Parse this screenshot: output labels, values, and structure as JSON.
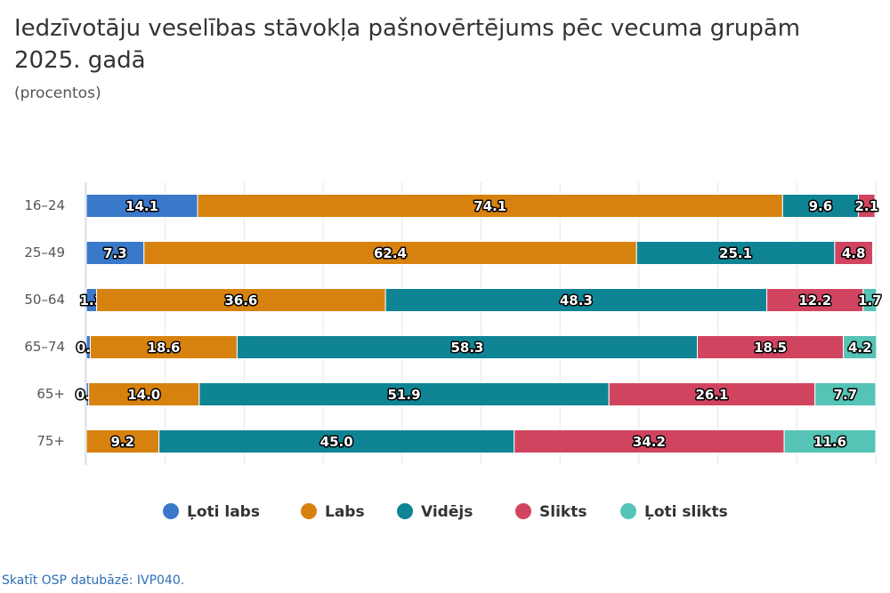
{
  "chart_data": {
    "type": "stacked_barh",
    "title": "Iedzīvotāju veselības stāvokļa pašnovērtējums pēc vecuma grupām 2025. gadā",
    "subtitle": "(procentos)",
    "categories": [
      "16–24",
      "25–49",
      "50–64",
      "65–74",
      "65+",
      "75+"
    ],
    "series": [
      {
        "name": "Ļoti labs",
        "color": "#3a78c9",
        "values": [
          14.1,
          7.3,
          1.3,
          0.5,
          0.3,
          null
        ]
      },
      {
        "name": "Labs",
        "color": "#d7820f",
        "values": [
          74.1,
          62.4,
          36.6,
          18.6,
          14.0,
          9.2
        ],
        "value_labels": [
          "74.1",
          "62.4",
          "36.6",
          "18.6",
          "14.0",
          "9.2"
        ]
      },
      {
        "name": "Vidējs",
        "color": "#0f8494",
        "values": [
          9.6,
          25.1,
          48.3,
          58.3,
          51.9,
          45.0
        ],
        "value_labels": [
          "9.6",
          "25.1",
          "48.3",
          "58.3",
          "51.9",
          "45.0"
        ]
      },
      {
        "name": "Slikts",
        "color": "#d1445f",
        "values": [
          2.1,
          4.8,
          12.2,
          18.5,
          26.1,
          34.2
        ]
      },
      {
        "name": "Ļoti slikts",
        "color": "#55c3b5",
        "values": [
          null,
          null,
          1.7,
          4.2,
          7.7,
          11.6
        ]
      }
    ],
    "xlim": [
      0,
      100
    ],
    "xticks": [
      0,
      10,
      20,
      30,
      40,
      50,
      60,
      70,
      80,
      90,
      100
    ],
    "grid": true,
    "legend": "bottom",
    "footer": "Skatīt OSP datubāzē: IVP040."
  }
}
